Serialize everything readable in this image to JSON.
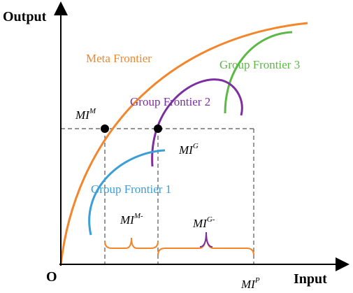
{
  "axes": {
    "y_label": "Output",
    "x_label": "Input",
    "origin": "O"
  },
  "frontiers": [
    {
      "label": "Meta Frontier"
    },
    {
      "label": "Group Frontier 3"
    },
    {
      "label": "Group Frontier 2"
    },
    {
      "label": "Group Frontier 1"
    }
  ],
  "measures": [
    {
      "base": "MI",
      "sup": "M"
    },
    {
      "base": "MI",
      "sup": "G"
    },
    {
      "base": "MI",
      "sup": "M-"
    },
    {
      "base": "MI",
      "sup": "G-"
    },
    {
      "base": "MI",
      "sup": "P"
    }
  ]
}
